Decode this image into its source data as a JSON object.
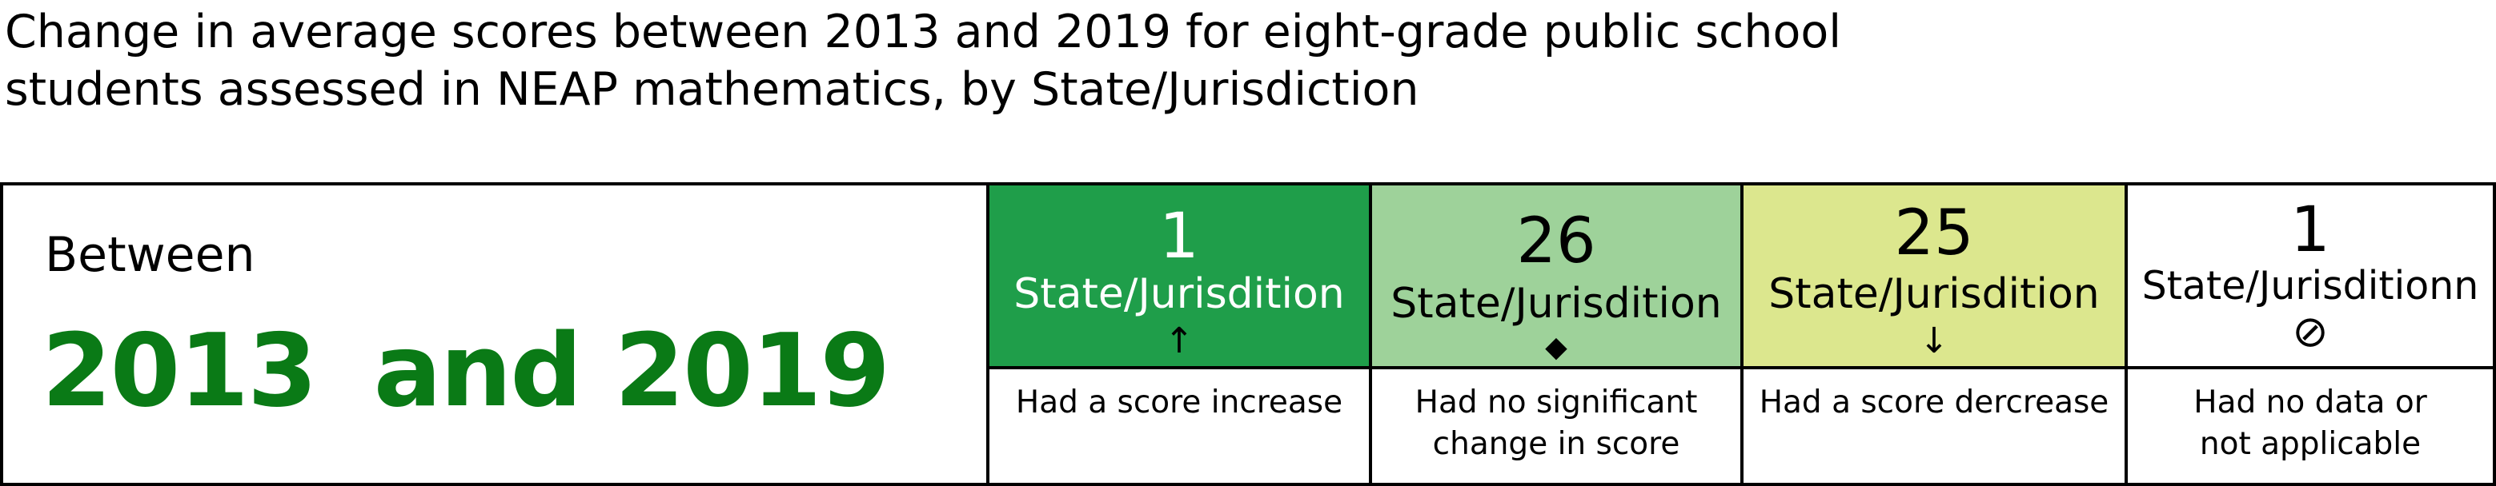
{
  "title_lines": [
    "Change in average scores between 2013 and 2019 for eight-grade public school",
    "students assessed in NEAP mathematics, by State/Jurisdiction"
  ],
  "period": {
    "label": "Between",
    "years": [
      "2013",
      "and 2019"
    ]
  },
  "chart_data": {
    "type": "table",
    "title": "Change in average scores between 2013 and 2019 for eight-grade public school students assessed in NEAP mathematics, by State/Jurisdiction",
    "categories": [
      {
        "count": "1",
        "unit": "State/Jurisdition",
        "symbol": "↑",
        "symbol_name": "up-arrow-icon",
        "description": [
          "Had a score increase"
        ],
        "color": "#1f9e4a",
        "value": 1
      },
      {
        "count": "26",
        "unit": "State/Jurisdition",
        "symbol": "◆",
        "symbol_name": "diamond-icon",
        "description": [
          "Had no significant",
          "change in score"
        ],
        "color": "#9ed29a",
        "value": 26
      },
      {
        "count": "25",
        "unit": "State/Jurisdition",
        "symbol": "↓",
        "symbol_name": "down-arrow-icon",
        "description": [
          "Had a score dercrease"
        ],
        "color": "#dce78e",
        "value": 25
      },
      {
        "count": "1",
        "unit": "State/Jurisditionn",
        "symbol": "⊘",
        "symbol_name": "no-data-icon",
        "description": [
          "Had no data or",
          "not applicable"
        ],
        "color": "#ffffff",
        "value": 1
      }
    ]
  },
  "colors": {
    "years_text": "#0a7a16",
    "border": "#000000"
  }
}
